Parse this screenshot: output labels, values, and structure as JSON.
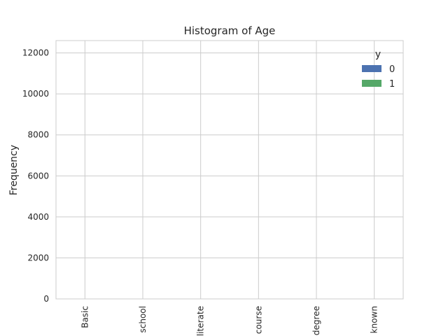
{
  "chart_data": {
    "type": "bar",
    "title": "Histogram of Age",
    "xlabel": "",
    "ylabel": "Frequency",
    "categories": [
      "Basic",
      "school",
      "literate",
      "course",
      "degree",
      "known"
    ],
    "ylim": [
      0,
      12600
    ],
    "yticks": [
      0,
      2000,
      4000,
      6000,
      8000,
      10000,
      12000
    ],
    "grid": true,
    "legend": {
      "title": "y",
      "placement": "top-right"
    },
    "series": [
      {
        "name": "0",
        "color": "#4c72b0",
        "values": [
          0,
          0,
          0,
          0,
          0,
          0
        ]
      },
      {
        "name": "1",
        "color": "#55a868",
        "values": [
          0,
          0,
          0,
          0,
          0,
          0
        ]
      }
    ]
  }
}
